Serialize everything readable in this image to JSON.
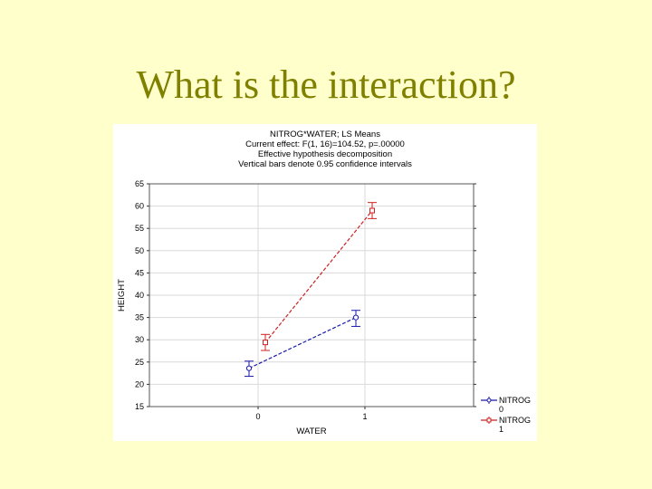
{
  "slide": {
    "title": "What is the interaction?"
  },
  "chart_data": {
    "type": "line",
    "title_lines": [
      "NITROG*WATER; LS Means",
      "Current effect: F(1, 16)=104.52, p=.00000",
      "Effective hypothesis decomposition",
      "Vertical bars denote 0.95 confidence intervals"
    ],
    "xlabel": "WATER",
    "ylabel": "HEIGHT",
    "categories": [
      "0",
      "1"
    ],
    "ylim": [
      15,
      65
    ],
    "yticks": [
      15,
      20,
      25,
      30,
      35,
      40,
      45,
      50,
      55,
      60,
      65
    ],
    "grid": true,
    "legend_position": "bottom-right",
    "series": [
      {
        "name": "NITROG 0",
        "legend_lines": [
          "NITROG",
          "0"
        ],
        "color": "#1a1aaa",
        "marker": "circle",
        "values": [
          23.6,
          35.0
        ],
        "ci_low": [
          21.8,
          33.0
        ],
        "ci_high": [
          25.2,
          36.6
        ]
      },
      {
        "name": "NITROG 1",
        "legend_lines": [
          "NITROG",
          "1"
        ],
        "color": "#cc2222",
        "marker": "square",
        "values": [
          29.4,
          59.0
        ],
        "ci_low": [
          27.6,
          57.2
        ],
        "ci_high": [
          31.2,
          60.8
        ]
      }
    ]
  }
}
